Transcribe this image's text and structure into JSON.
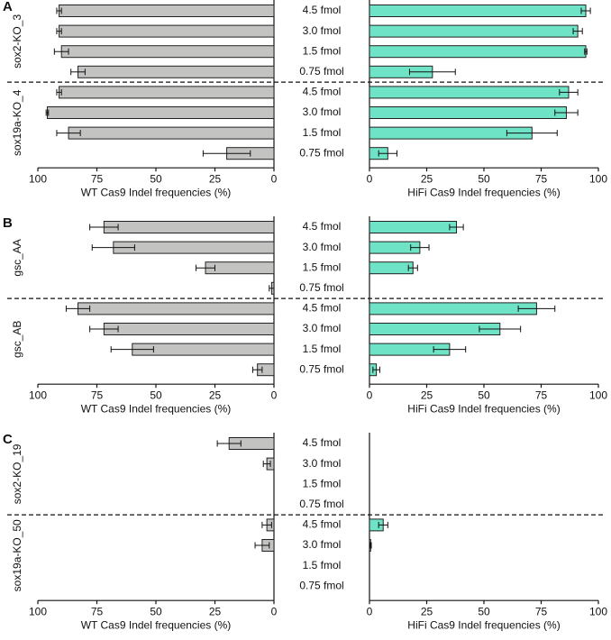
{
  "chart_data": [
    {
      "type": "bar",
      "panel_label": "A",
      "groups": [
        {
          "name": "sox2-KO_3",
          "categories": [
            "4.5 fmol",
            "3.0 fmol",
            "1.5 fmol",
            "0.75 fmol"
          ]
        },
        {
          "name": "sox19a-KO_4",
          "categories": [
            "4.5 fmol",
            "3.0 fmol",
            "1.5 fmol",
            "0.75 fmol"
          ]
        }
      ],
      "series": [
        {
          "color": "#c3c3c1",
          "values": [
            91,
            91,
            90,
            83,
            91,
            96,
            87,
            20
          ],
          "errors": [
            1,
            1,
            3,
            3,
            1,
            0.5,
            5,
            10
          ],
          "xlabel": "WT Cas9 Indel frequencies (%)",
          "xlim": [
            100,
            0
          ],
          "xticks": [
            100,
            75,
            50,
            25,
            0
          ]
        },
        {
          "color": "#6fe3c6",
          "values": [
            94.5,
            91,
            94.5,
            27.5,
            87,
            86,
            71,
            8
          ],
          "errors": [
            2,
            2,
            0.5,
            10,
            4,
            5,
            11,
            4
          ],
          "xlabel": "HiFi Cas9 Indel frequencies (%)",
          "xlim": [
            0,
            100
          ],
          "xticks": [
            0,
            25,
            50,
            75,
            100
          ]
        }
      ]
    },
    {
      "type": "bar",
      "panel_label": "B",
      "groups": [
        {
          "name": "gsc_AA",
          "categories": [
            "4.5 fmol",
            "3.0 fmol",
            "1.5 fmol",
            "0.75 fmol"
          ]
        },
        {
          "name": "gsc_AB",
          "categories": [
            "4.5 fmol",
            "3.0 fmol",
            "1.5 fmol",
            "0.75 fmol"
          ]
        }
      ],
      "series": [
        {
          "color": "#c3c3c1",
          "values": [
            72,
            68,
            29,
            1,
            83,
            72,
            60,
            7
          ],
          "errors": [
            6,
            9,
            4,
            1,
            5,
            6,
            9,
            2
          ],
          "xlabel": "WT Cas9 Indel frequencies (%)",
          "xlim": [
            100,
            0
          ],
          "xticks": [
            100,
            75,
            50,
            25,
            0
          ]
        },
        {
          "color": "#6fe3c6",
          "values": [
            38,
            22,
            19,
            null,
            73,
            57,
            35,
            3
          ],
          "errors": [
            3,
            4,
            2,
            null,
            8,
            9,
            7,
            1.5
          ],
          "xlabel": "HiFi Cas9 Indel frequencies (%)",
          "xlim": [
            0,
            100
          ],
          "xticks": [
            0,
            25,
            50,
            75,
            100
          ]
        }
      ]
    },
    {
      "type": "bar",
      "panel_label": "C",
      "groups": [
        {
          "name": "sox2-KO_19",
          "categories": [
            "4.5 fmol",
            "3.0 fmol",
            "1.5 fmol",
            "0.75 fmol"
          ]
        },
        {
          "name": "sox19a-KO_50",
          "categories": [
            "4.5 fmol",
            "3.0 fmol",
            "1.5 fmol",
            "0.75 fmol"
          ]
        }
      ],
      "series": [
        {
          "color": "#c3c3c1",
          "values": [
            19,
            3,
            null,
            null,
            3,
            5,
            null,
            null
          ],
          "errors": [
            5,
            1.5,
            null,
            null,
            2,
            3,
            null,
            null
          ],
          "xlabel": "WT Cas9 Indel frequencies (%)",
          "xlim": [
            100,
            0
          ],
          "xticks": [
            100,
            75,
            50,
            25,
            0
          ]
        },
        {
          "color": "#6fe3c6",
          "values": [
            null,
            null,
            null,
            null,
            6,
            0.5,
            null,
            null
          ],
          "errors": [
            null,
            null,
            null,
            null,
            2,
            0.3,
            null,
            null
          ],
          "xlabel": "HiFi Cas9 Indel frequencies (%)",
          "xlim": [
            0,
            100
          ],
          "xticks": [
            0,
            25,
            50,
            75,
            100
          ]
        }
      ]
    }
  ]
}
